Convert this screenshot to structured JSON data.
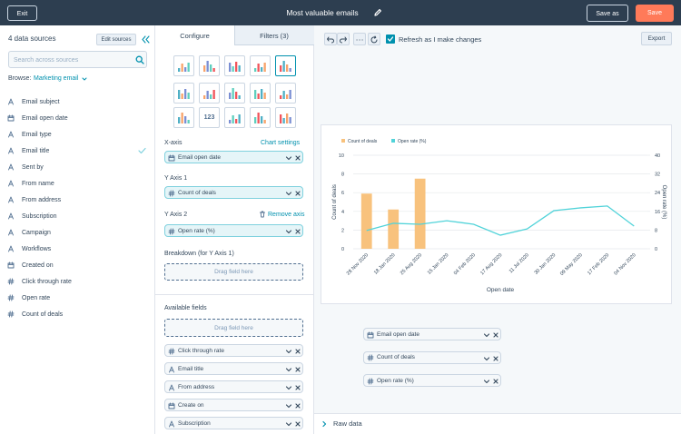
{
  "header": {
    "exit": "Exit",
    "title": "Most valuable emails",
    "save_as": "Save as",
    "save": "Save"
  },
  "sidebar": {
    "title": "4 data sources",
    "edit": "Edit sources",
    "search_placeholder": "Search across sources",
    "browse_label": "Browse:",
    "browse_value": "Marketing email",
    "fields": [
      {
        "label": "Email subject",
        "kind": "text"
      },
      {
        "label": "Email open date",
        "kind": "date"
      },
      {
        "label": "Email type",
        "kind": "text"
      },
      {
        "label": "Email title",
        "kind": "text",
        "checked": true
      },
      {
        "label": "Sent by",
        "kind": "text"
      },
      {
        "label": "From name",
        "kind": "text"
      },
      {
        "label": "From address",
        "kind": "text"
      },
      {
        "label": "Subscription",
        "kind": "text"
      },
      {
        "label": "Campaign",
        "kind": "text"
      },
      {
        "label": "Workflows",
        "kind": "text"
      },
      {
        "label": "Created on",
        "kind": "date"
      },
      {
        "label": "Click through rate",
        "kind": "number"
      },
      {
        "label": "Open rate",
        "kind": "number"
      },
      {
        "label": "Count of deals",
        "kind": "number"
      }
    ]
  },
  "config": {
    "tabs": [
      "Configure",
      "Filters (3)"
    ],
    "number_icon": "123",
    "x_axis": {
      "label": "X-axis",
      "link": "Chart settings",
      "field": {
        "label": "Email open date",
        "kind": "date"
      }
    },
    "y_axis_1": {
      "label": "Y Axis 1",
      "field": {
        "label": "Count of deals",
        "kind": "number"
      }
    },
    "y_axis_2": {
      "label": "Y Axis 2",
      "link": "Remove axis",
      "field": {
        "label": "Open rate (%)",
        "kind": "number"
      }
    },
    "breakdown": {
      "label": "Breakdown (for Y Axis 1)",
      "drop": "Drag field here"
    },
    "available": {
      "label": "Available fields",
      "drop": "Drag field here",
      "fields": [
        {
          "label": "Click through rate",
          "kind": "number"
        },
        {
          "label": "Email title",
          "kind": "text"
        },
        {
          "label": "From address",
          "kind": "text"
        },
        {
          "label": "Create on",
          "kind": "date"
        },
        {
          "label": "Subscription",
          "kind": "text"
        }
      ]
    }
  },
  "toolbar": {
    "refresh_label": "Refresh as I make changes",
    "refresh_checked": true,
    "export": "Export"
  },
  "chart_data": {
    "type": "combo",
    "categories": [
      "28 Nov 2020",
      "18 Jan 2020",
      "25 Aug 2020",
      "15 Jan 2020",
      "04 Feb 2020",
      "17 Aug 2020",
      "11 Jul 2020",
      "30 Jan 2020",
      "09 May 2020",
      "17 Feb 2020",
      "04 Nov 2020"
    ],
    "series": [
      {
        "name": "Count of deals",
        "color": "#f8c27d",
        "kind": "bar",
        "values": [
          5.9,
          4.2,
          7.5,
          null,
          null,
          null,
          null,
          null,
          null,
          null,
          null
        ]
      },
      {
        "name": "Open rate (%)",
        "color": "#51d3d9",
        "kind": "line",
        "axis": "y2",
        "values": [
          7.8,
          10.9,
          10.5,
          12,
          10.5,
          5.8,
          8.5,
          16.3,
          17.5,
          18.3,
          9.7
        ]
      }
    ],
    "ylim": [
      0,
      10
    ],
    "yticks": [
      0,
      2,
      4,
      6,
      8,
      10
    ],
    "y2lim": [
      0,
      40
    ],
    "y2ticks": [
      0,
      8,
      16,
      24,
      32,
      40
    ],
    "grid": true,
    "x_title": "Open date",
    "y_title": "Count of deals",
    "y2_title": "Open rate (%)"
  },
  "legend_fields": [
    {
      "label": "Email open date",
      "kind": "date"
    },
    {
      "label": "Count of deals",
      "kind": "number"
    },
    {
      "label": "Open rate (%)",
      "kind": "number"
    }
  ],
  "raw_data": "Raw data"
}
